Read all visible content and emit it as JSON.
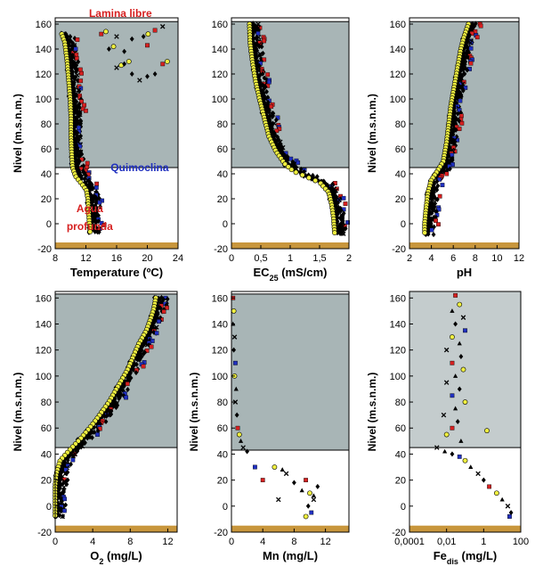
{
  "colors": {
    "upper_zone": "#a8b5b6",
    "upper_zone_light": "#c4cccd",
    "sediment": "#c8963c",
    "red_series": "#d62020",
    "blue_series": "#2030c0",
    "yellow_series": "#f0f040",
    "black_series": "#000000"
  },
  "chart_data": [
    {
      "type": "scatter",
      "id": "temperature",
      "xlabel": "Temperature (ºC)",
      "ylabel": "Nivel (m.s.n.m.)",
      "xlim": [
        8,
        24
      ],
      "ylim": [
        -20,
        165
      ],
      "xticks": [
        {
          "v": 8,
          "l": "8"
        },
        {
          "v": 12,
          "l": "12"
        },
        {
          "v": 16,
          "l": "16"
        },
        {
          "v": 20,
          "l": "20"
        },
        {
          "v": 24,
          "l": "24"
        }
      ],
      "yticks": [
        -20,
        0,
        20,
        40,
        60,
        80,
        100,
        120,
        140,
        160
      ],
      "zone_top": 162,
      "zone_bottom": 45,
      "sediment": [
        -20,
        -15
      ],
      "annotations": [
        {
          "text": "Lamina libre",
          "color": "#d62020",
          "x": 16.5,
          "y": 165
        },
        {
          "text": "Quimoclina",
          "color": "#2030c0",
          "x": 19,
          "y": 45
        },
        {
          "text": "Agua",
          "color": "#d62020",
          "x": 12.5,
          "y": 12
        },
        {
          "text": "profunda",
          "color": "#d62020",
          "x": 12.5,
          "y": -2
        }
      ],
      "profile": [
        [
          9.2,
          152
        ],
        [
          9.6,
          145
        ],
        [
          9.9,
          130
        ],
        [
          10.1,
          115
        ],
        [
          10.3,
          100
        ],
        [
          10.4,
          85
        ],
        [
          10.4,
          70
        ],
        [
          10.5,
          55
        ],
        [
          10.6,
          45
        ],
        [
          11.0,
          38
        ],
        [
          11.8,
          32
        ],
        [
          12.4,
          27
        ],
        [
          12.6,
          20
        ],
        [
          12.7,
          10
        ],
        [
          12.8,
          0
        ],
        [
          12.9,
          -8
        ]
      ],
      "surface_markers": [
        [
          14,
          152
        ],
        [
          16,
          150
        ],
        [
          18,
          148
        ],
        [
          19.5,
          150
        ],
        [
          21,
          155
        ],
        [
          22,
          158
        ],
        [
          15,
          140
        ],
        [
          17,
          138
        ],
        [
          20,
          143
        ],
        [
          16,
          125
        ],
        [
          18,
          120
        ],
        [
          20,
          118
        ],
        [
          22,
          128
        ],
        [
          19,
          115
        ],
        [
          21,
          120
        ],
        [
          17,
          128
        ]
      ]
    },
    {
      "type": "scatter",
      "id": "conductivity",
      "xlabel": "EC25 (mS/cm)",
      "ylabel": "",
      "xlim": [
        0,
        2
      ],
      "ylim": [
        -20,
        165
      ],
      "xticks": [
        {
          "v": 0,
          "l": "0"
        },
        {
          "v": 0.5,
          "l": "0,5"
        },
        {
          "v": 1,
          "l": "1"
        },
        {
          "v": 1.5,
          "l": "1,5"
        },
        {
          "v": 2,
          "l": "2"
        }
      ],
      "yticks": [
        -20,
        0,
        20,
        40,
        60,
        80,
        100,
        120,
        140,
        160
      ],
      "zone_top": 162,
      "zone_bottom": 45,
      "sediment": [
        -20,
        -15
      ],
      "profile": [
        [
          0.35,
          160
        ],
        [
          0.36,
          145
        ],
        [
          0.4,
          130
        ],
        [
          0.45,
          115
        ],
        [
          0.52,
          100
        ],
        [
          0.6,
          85
        ],
        [
          0.68,
          70
        ],
        [
          0.8,
          58
        ],
        [
          0.95,
          48
        ],
        [
          1.1,
          42
        ],
        [
          1.3,
          38
        ],
        [
          1.55,
          33
        ],
        [
          1.7,
          25
        ],
        [
          1.75,
          15
        ],
        [
          1.78,
          5
        ],
        [
          1.8,
          -8
        ]
      ]
    },
    {
      "type": "scatter",
      "id": "ph",
      "xlabel": "pH",
      "ylabel": "Nivel (m.s.n.m.)",
      "xlim": [
        2,
        12
      ],
      "ylim": [
        -20,
        165
      ],
      "xticks": [
        {
          "v": 2,
          "l": "2"
        },
        {
          "v": 4,
          "l": "4"
        },
        {
          "v": 6,
          "l": "6"
        },
        {
          "v": 8,
          "l": "8"
        },
        {
          "v": 10,
          "l": "10"
        },
        {
          "v": 12,
          "l": "12"
        }
      ],
      "yticks": [
        -20,
        0,
        20,
        40,
        60,
        80,
        100,
        120,
        140,
        160
      ],
      "zone_top": 162,
      "zone_bottom": 45,
      "sediment": [
        -20,
        -15
      ],
      "profile": [
        [
          7.6,
          160
        ],
        [
          7.2,
          150
        ],
        [
          6.9,
          140
        ],
        [
          6.6,
          125
        ],
        [
          6.3,
          110
        ],
        [
          6.0,
          95
        ],
        [
          5.8,
          80
        ],
        [
          5.6,
          65
        ],
        [
          5.3,
          50
        ],
        [
          4.6,
          40
        ],
        [
          4.2,
          35
        ],
        [
          3.9,
          25
        ],
        [
          3.7,
          10
        ],
        [
          3.6,
          0
        ],
        [
          3.6,
          -8
        ]
      ]
    },
    {
      "type": "scatter",
      "id": "oxygen",
      "xlabel": "O2 (mg/L)",
      "ylabel": "Nivel (m.s.n.m.)",
      "xlim": [
        0,
        13
      ],
      "ylim": [
        -20,
        165
      ],
      "xticks": [
        {
          "v": 0,
          "l": "0"
        },
        {
          "v": 4,
          "l": "4"
        },
        {
          "v": 8,
          "l": "8"
        },
        {
          "v": 12,
          "l": "12"
        }
      ],
      "yticks": [
        -20,
        0,
        20,
        40,
        60,
        80,
        100,
        120,
        140,
        160
      ],
      "zone_top": 163,
      "zone_bottom": 45,
      "sediment": [
        -20,
        -15
      ],
      "profile": [
        [
          11,
          160
        ],
        [
          10.8,
          152
        ],
        [
          10.5,
          145
        ],
        [
          10,
          135
        ],
        [
          9.2,
          125
        ],
        [
          8.6,
          115
        ],
        [
          8.0,
          105
        ],
        [
          7.2,
          95
        ],
        [
          6.0,
          80
        ],
        [
          4.5,
          65
        ],
        [
          3.0,
          52
        ],
        [
          1.8,
          43
        ],
        [
          0.8,
          35
        ],
        [
          0.4,
          25
        ],
        [
          0.2,
          10
        ],
        [
          0.1,
          -8
        ]
      ]
    },
    {
      "type": "scatter",
      "id": "manganese",
      "xlabel": "Mn (mg/L)",
      "ylabel": "Nivel (m.s.n.m.)",
      "xlim": [
        0,
        15
      ],
      "ylim": [
        -20,
        165
      ],
      "xticks": [
        {
          "v": 0,
          "l": "0"
        },
        {
          "v": 4,
          "l": "4"
        },
        {
          "v": 8,
          "l": "8"
        },
        {
          "v": 12,
          "l": "12"
        }
      ],
      "yticks": [
        -20,
        0,
        20,
        40,
        60,
        80,
        100,
        120,
        140,
        160
      ],
      "zone_top": 163,
      "zone_bottom": 43,
      "sediment": [
        -20,
        -15
      ],
      "points": [
        [
          0.2,
          160
        ],
        [
          0.3,
          150
        ],
        [
          0.2,
          140
        ],
        [
          0.4,
          130
        ],
        [
          0.3,
          120
        ],
        [
          0.5,
          110
        ],
        [
          0.4,
          100
        ],
        [
          0.6,
          90
        ],
        [
          0.5,
          80
        ],
        [
          0.7,
          70
        ],
        [
          0.8,
          60
        ],
        [
          1.0,
          55
        ],
        [
          1.2,
          50
        ],
        [
          1.5,
          45
        ],
        [
          2.0,
          42
        ],
        [
          3.0,
          30
        ],
        [
          5.5,
          30
        ],
        [
          6.5,
          28
        ],
        [
          7.0,
          25
        ],
        [
          8.0,
          18
        ],
        [
          9.5,
          20
        ],
        [
          10.0,
          10
        ],
        [
          9.0,
          12
        ],
        [
          10.5,
          5
        ],
        [
          9.8,
          0
        ],
        [
          10.2,
          -5
        ],
        [
          9.5,
          -8
        ],
        [
          10.5,
          8
        ],
        [
          6.0,
          5
        ],
        [
          11.0,
          15
        ],
        [
          4.0,
          20
        ]
      ]
    },
    {
      "type": "scatter",
      "id": "iron",
      "xlabel": "Fedis (mg/L)",
      "ylabel": "Nivel (m.s.n.m.)",
      "x_scale": "log",
      "xlim": [
        0.0001,
        100
      ],
      "ylim": [
        -20,
        165
      ],
      "xticks": [
        {
          "v": 0.0001,
          "l": "0,0001"
        },
        {
          "v": 0.01,
          "l": "0,01"
        },
        {
          "v": 1,
          "l": "1"
        },
        {
          "v": 100,
          "l": "100"
        }
      ],
      "yticks": [
        -20,
        0,
        20,
        40,
        60,
        80,
        100,
        120,
        140,
        160
      ],
      "zone_top": 170,
      "zone_bottom": 45,
      "sediment": [
        -20,
        -15
      ],
      "points": [
        [
          0.03,
          162
        ],
        [
          0.05,
          155
        ],
        [
          0.02,
          150
        ],
        [
          0.08,
          145
        ],
        [
          0.03,
          140
        ],
        [
          0.1,
          135
        ],
        [
          0.02,
          130
        ],
        [
          0.05,
          125
        ],
        [
          0.01,
          120
        ],
        [
          0.06,
          115
        ],
        [
          0.02,
          110
        ],
        [
          0.08,
          105
        ],
        [
          0.03,
          100
        ],
        [
          0.01,
          95
        ],
        [
          0.05,
          90
        ],
        [
          0.02,
          85
        ],
        [
          0.1,
          80
        ],
        [
          0.03,
          75
        ],
        [
          0.007,
          70
        ],
        [
          0.04,
          65
        ],
        [
          0.02,
          60
        ],
        [
          0.01,
          55
        ],
        [
          0.06,
          50
        ],
        [
          0.003,
          45
        ],
        [
          0.02,
          40
        ],
        [
          0.05,
          38
        ],
        [
          0.1,
          35
        ],
        [
          0.2,
          30
        ],
        [
          0.5,
          25
        ],
        [
          1.0,
          20
        ],
        [
          2.0,
          15
        ],
        [
          5.0,
          10
        ],
        [
          10.0,
          5
        ],
        [
          20.0,
          0
        ],
        [
          30.0,
          -5
        ],
        [
          25.0,
          -8
        ],
        [
          1.5,
          58
        ],
        [
          0.008,
          42
        ]
      ]
    }
  ]
}
